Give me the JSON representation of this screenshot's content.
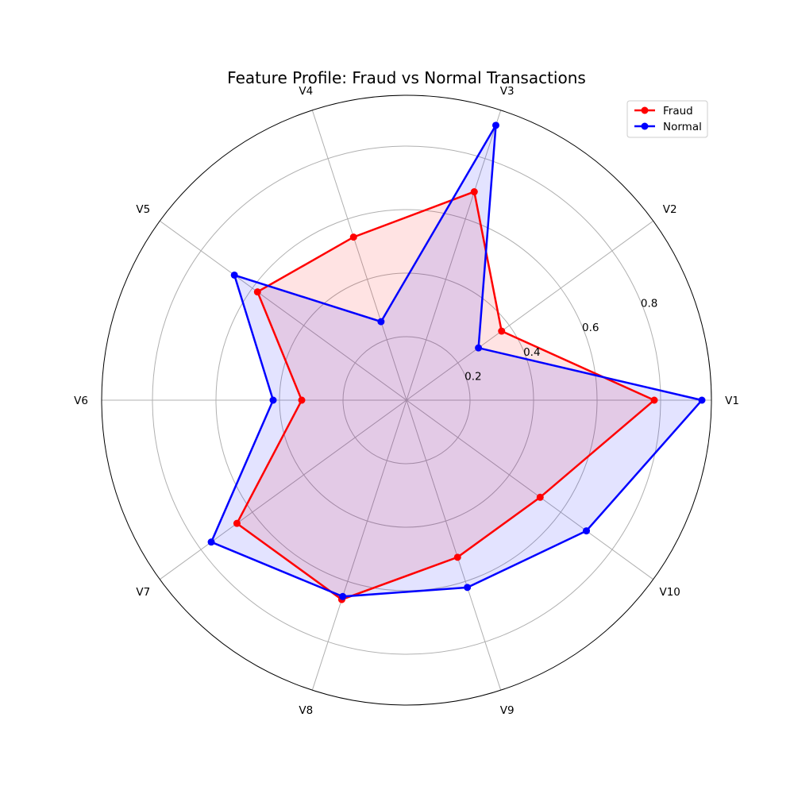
{
  "chart_data": {
    "type": "radar",
    "title": "Feature Profile: Fraud vs Normal Transactions",
    "categories": [
      "V1",
      "V2",
      "V3",
      "V4",
      "V5",
      "V6",
      "V7",
      "V8",
      "V9",
      "V10"
    ],
    "radial_ticks": [
      "0.2",
      "0.4",
      "0.6",
      "0.8"
    ],
    "rlim": [
      0,
      0.96
    ],
    "grid": true,
    "legend_position": "top-right",
    "series": [
      {
        "name": "Fraud",
        "color": "#ff0000",
        "fill": "#ffcccc",
        "values": [
          0.78,
          0.37,
          0.69,
          0.54,
          0.58,
          0.33,
          0.66,
          0.66,
          0.52,
          0.52
        ]
      },
      {
        "name": "Normal",
        "color": "#0000ff",
        "fill": "#ccccff",
        "values": [
          0.93,
          0.28,
          0.91,
          0.26,
          0.67,
          0.42,
          0.76,
          0.65,
          0.62,
          0.7
        ]
      }
    ]
  }
}
